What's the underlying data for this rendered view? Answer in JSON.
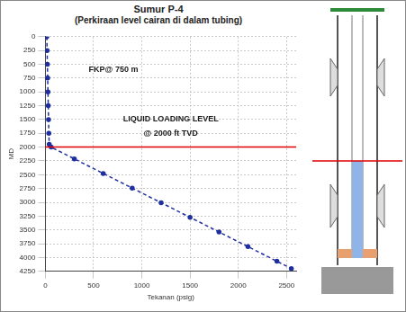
{
  "chart_data": {
    "type": "line",
    "title": "Sumur P-4",
    "subtitle": "(Perkiraan level cairan di dalam tubing)",
    "x_label": "Tekanan (psig)",
    "y_label": "MD",
    "x": [
      15,
      18,
      21,
      24,
      27,
      30,
      33,
      36,
      40,
      60,
      300,
      600,
      900,
      1200,
      1500,
      1800,
      2100,
      2400,
      2550
    ],
    "series": [
      {
        "color": "#1f2f9f",
        "line_style": "dashed",
        "marker": "circle",
        "values": [
          0,
          250,
          500,
          750,
          1000,
          1250,
          1500,
          1750,
          1950,
          2000,
          2212,
          2477,
          2742,
          3007,
          3272,
          3537,
          3802,
          4067,
          4200
        ]
      }
    ],
    "xlim": [
      0,
      2600
    ],
    "xticks": [
      0,
      500,
      1000,
      1500,
      2000,
      2500
    ],
    "ylim": [
      0,
      4250
    ],
    "yticks": [
      0,
      250,
      500,
      750,
      1000,
      1250,
      1500,
      1750,
      2000,
      2250,
      2500,
      2750,
      3000,
      3250,
      3500,
      3750,
      4000,
      4250
    ],
    "y_reversed": true,
    "grid": true,
    "reference_line": {
      "y": 2000,
      "color": "#e00000"
    },
    "annotations": [
      {
        "text": "FKP@ 750 m",
        "x": 450,
        "y": 600
      },
      {
        "text": "LIQUID LOADING LEVEL",
        "x": 1300,
        "y": 1500
      },
      {
        "text": "@ 2000 ft TVD",
        "x": 1300,
        "y": 1750
      }
    ]
  }
}
